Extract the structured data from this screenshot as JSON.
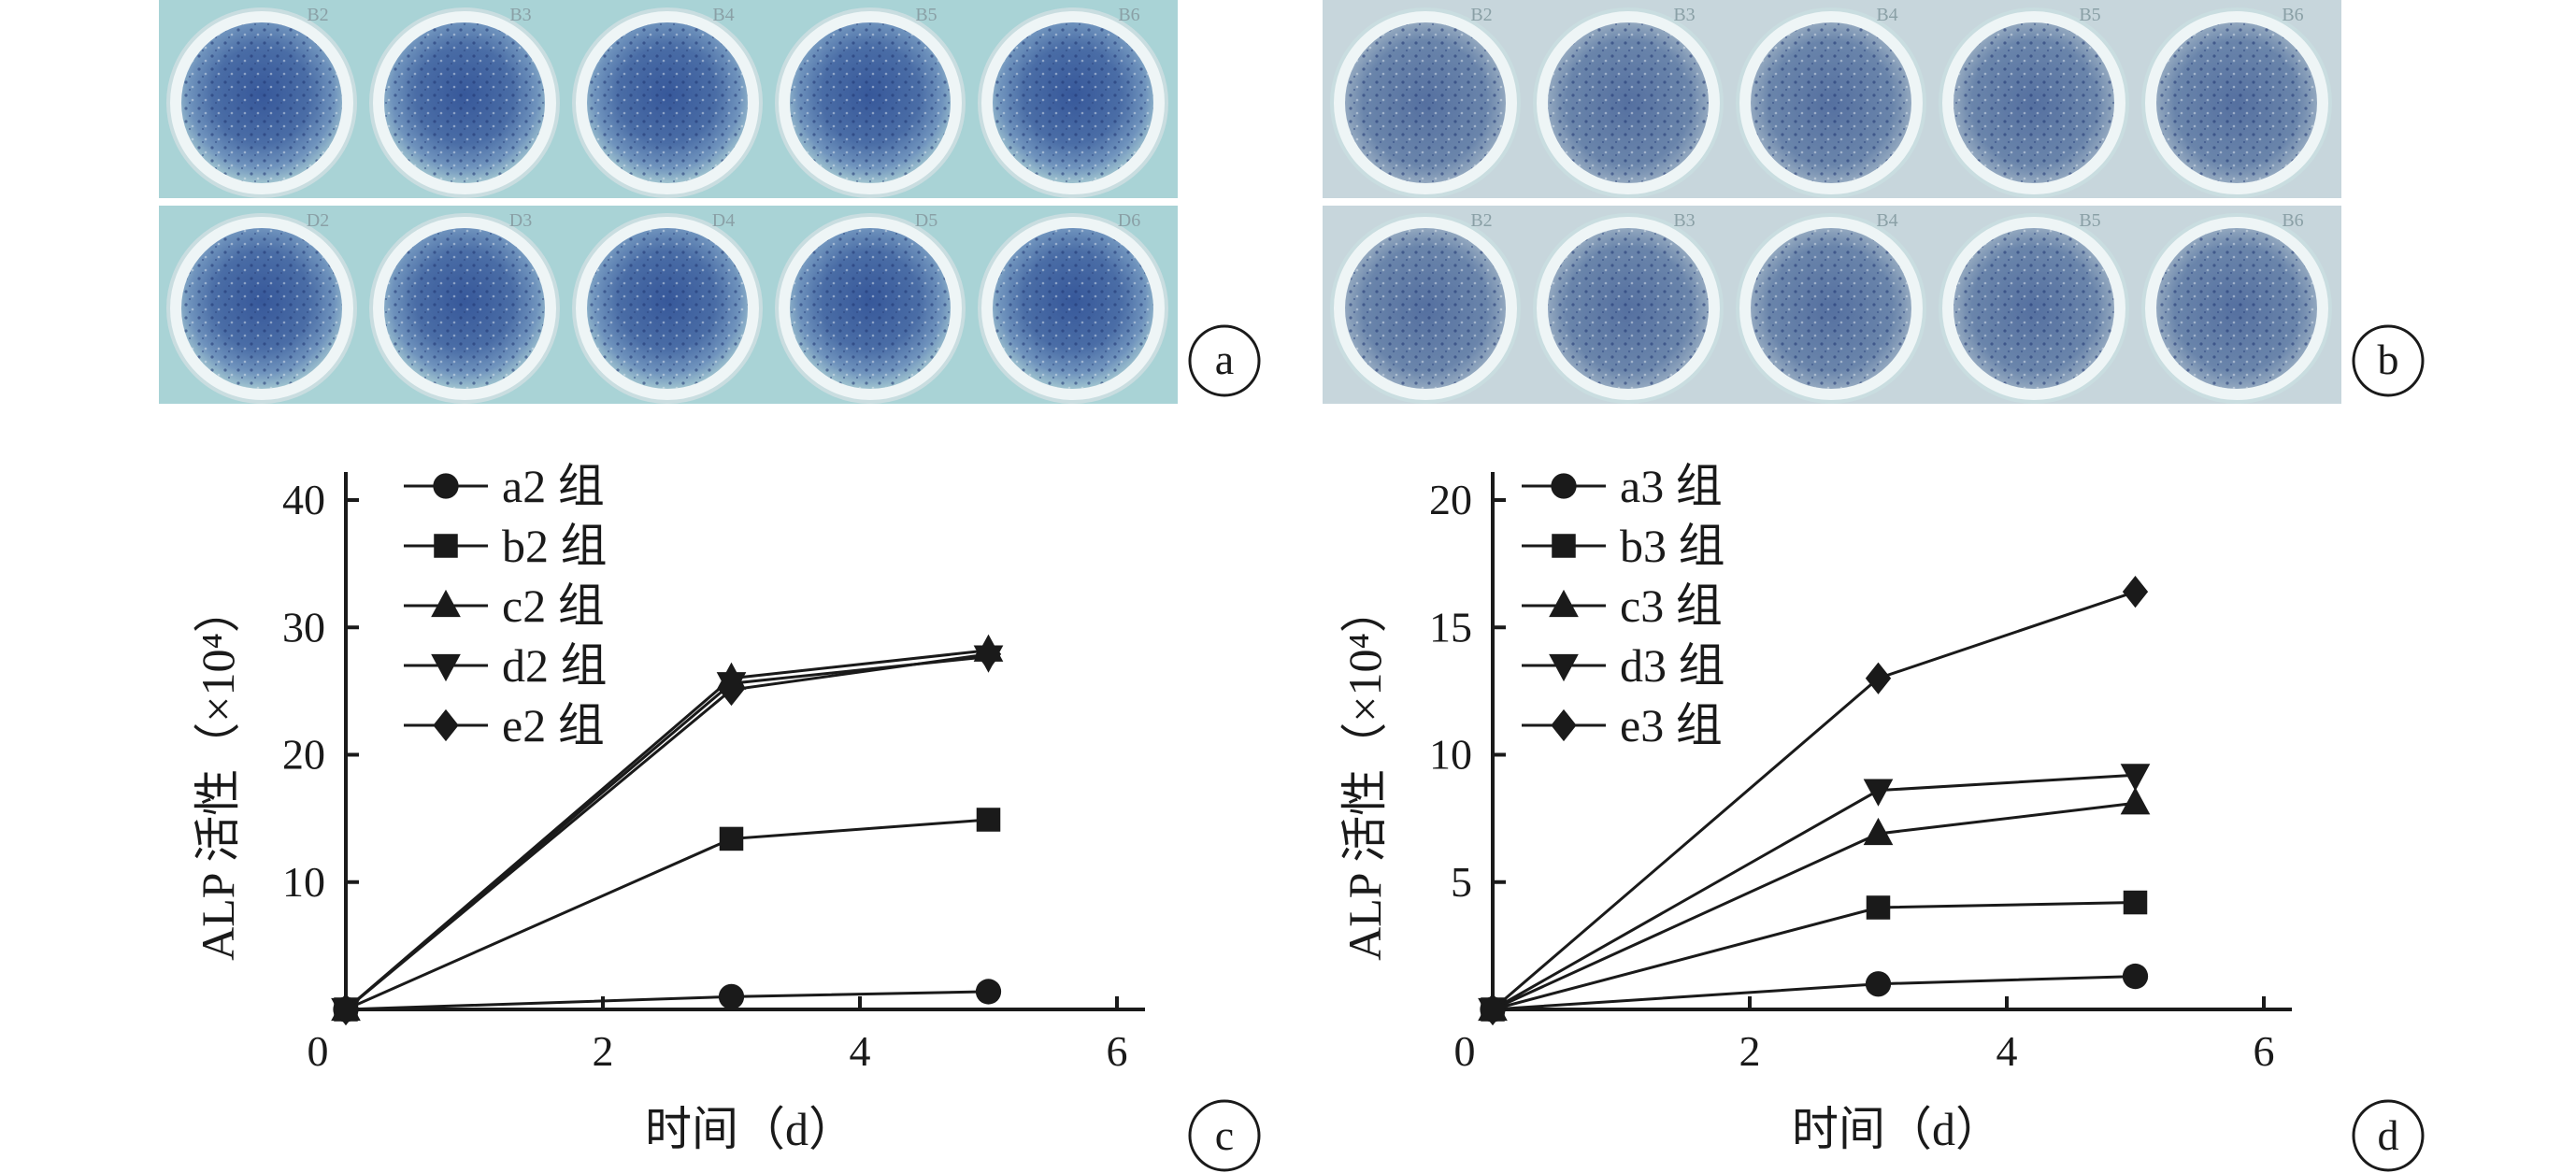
{
  "photos": {
    "a": {
      "letter": "a",
      "well_labels_top": [
        "B2",
        "B3",
        "B4",
        "B5",
        "B6"
      ],
      "well_labels_bottom": [
        "D2",
        "D3",
        "D4",
        "D5",
        "D6"
      ],
      "plate_color": "#a9d3d6",
      "stain_color": "#3d5e96"
    },
    "b": {
      "letter": "b",
      "well_labels_top": [
        "B2",
        "B3",
        "B4",
        "B5",
        "B6"
      ],
      "well_labels_bottom": [
        "B2",
        "B3",
        "B4",
        "B5",
        "B6"
      ],
      "plate_color": "#c7d6dc",
      "stain_color": "#5f7aa3"
    }
  },
  "chart_data": [
    {
      "type": "line",
      "panel": "c",
      "xlabel": "时间（d）",
      "ylabel": "ALP 活性（×10⁴）",
      "xlim": [
        0,
        6
      ],
      "ylim": [
        0,
        40
      ],
      "x_ticks": [
        "0",
        "2",
        "4",
        "6"
      ],
      "y_ticks": [
        "10",
        "20",
        "30",
        "40"
      ],
      "x": [
        0,
        3,
        5
      ],
      "legend_position": "top-left",
      "series": [
        {
          "name": "a2 组",
          "marker": "circle",
          "values": [
            0,
            1.0,
            1.4
          ]
        },
        {
          "name": "b2 组",
          "marker": "square",
          "values": [
            0,
            13.4,
            14.9
          ]
        },
        {
          "name": "c2 组",
          "marker": "triangle-up",
          "values": [
            0,
            26.0,
            28.2
          ]
        },
        {
          "name": "d2 组",
          "marker": "triangle-down",
          "values": [
            0,
            25.6,
            27.7
          ]
        },
        {
          "name": "e2 组",
          "marker": "diamond",
          "values": [
            0,
            25.1,
            27.9
          ]
        }
      ]
    },
    {
      "type": "line",
      "panel": "d",
      "xlabel": "时间（d）",
      "ylabel": "ALP 活性（×10⁴）",
      "xlim": [
        0,
        6
      ],
      "ylim": [
        0,
        20
      ],
      "x_ticks": [
        "0",
        "2",
        "4",
        "6"
      ],
      "y_ticks": [
        "5",
        "10",
        "15",
        "20"
      ],
      "x": [
        0,
        3,
        5
      ],
      "legend_position": "top-left",
      "series": [
        {
          "name": "a3 组",
          "marker": "circle",
          "values": [
            0,
            1.0,
            1.3
          ]
        },
        {
          "name": "b3 组",
          "marker": "square",
          "values": [
            0,
            4.0,
            4.2
          ]
        },
        {
          "name": "c3 组",
          "marker": "triangle-up",
          "values": [
            0,
            6.9,
            8.1
          ]
        },
        {
          "name": "d3 组",
          "marker": "triangle-down",
          "values": [
            0,
            8.6,
            9.2
          ]
        },
        {
          "name": "e3 组",
          "marker": "diamond",
          "values": [
            0,
            13.0,
            16.4
          ]
        }
      ]
    }
  ]
}
